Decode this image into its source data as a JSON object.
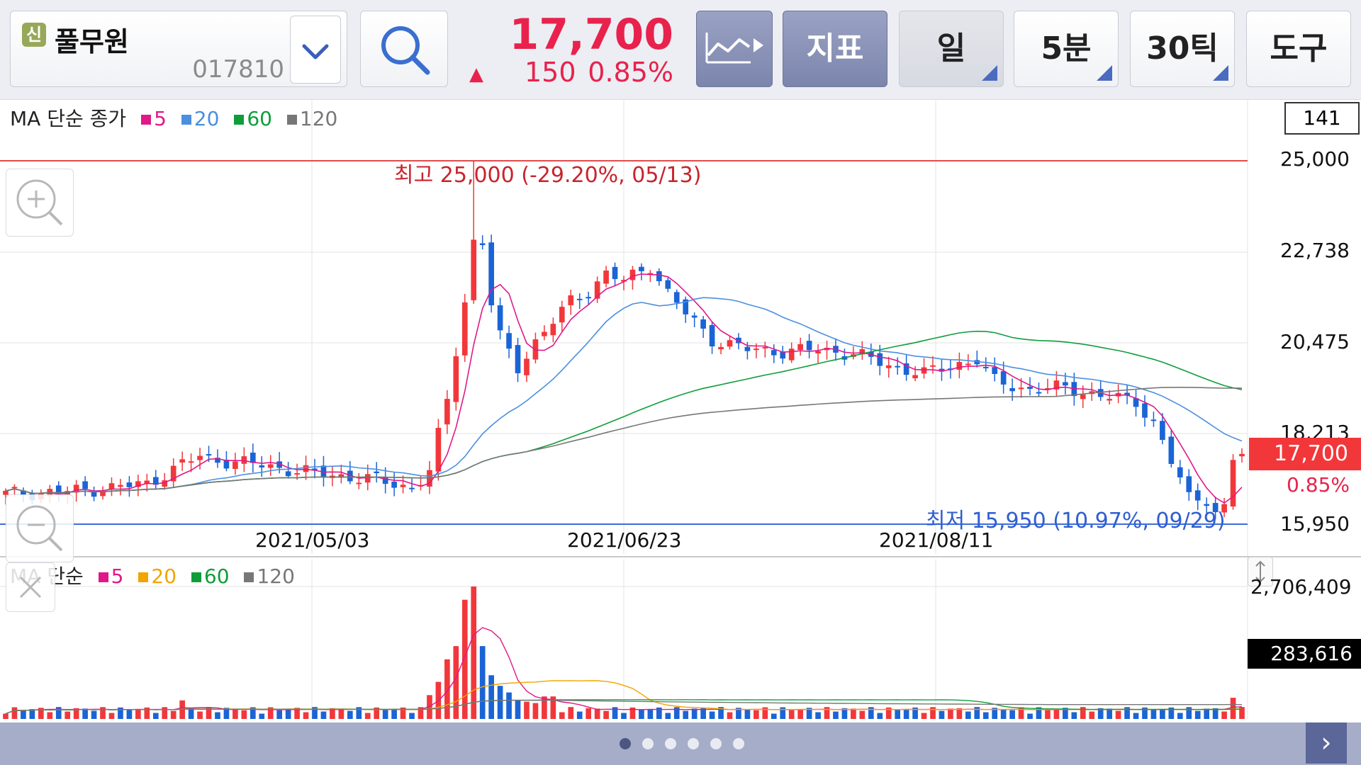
{
  "stock": {
    "badge": "신",
    "name": "풀무원",
    "code": "017810"
  },
  "quote": {
    "price": "17,700",
    "arrow": "▲",
    "change": "150",
    "change_pct": "0.85%"
  },
  "toolbar": {
    "indicator_label": "지표",
    "period_day": "일",
    "period_min": "5분",
    "period_tick": "30틱",
    "tools": "도구"
  },
  "price_chart": {
    "legend_title": "MA 단순 종가",
    "legend": [
      {
        "label": "5",
        "color": "#e0188a"
      },
      {
        "label": "20",
        "color": "#4b8fe0"
      },
      {
        "label": "60",
        "color": "#0f9d3a"
      },
      {
        "label": "120",
        "color": "#777777"
      }
    ],
    "count_box": "141",
    "y_labels": [
      "25,000",
      "22,738",
      "20,475",
      "18,213",
      "15,950"
    ],
    "current_price_label": "17,700",
    "current_pct_label": "0.85%",
    "high_annotation": "최고 25,000 (-29.20%, 05/13)",
    "low_annotation": "최저 15,950 (10.97%, 09/29)",
    "dates": [
      "2021/05/03",
      "2021/06/23",
      "2021/08/11"
    ],
    "colors": {
      "up": "#f2373b",
      "down": "#1a64d6",
      "high_line": "#e34b4b",
      "low_line": "#3f6dd8"
    }
  },
  "volume_chart": {
    "legend_title": "MA 단순",
    "legend": [
      {
        "label": "5",
        "color": "#e0188a"
      },
      {
        "label": "20",
        "color": "#f0a500"
      },
      {
        "label": "60",
        "color": "#0f9d3a"
      },
      {
        "label": "120",
        "color": "#777777"
      }
    ],
    "max_label": "2,706,409",
    "current_label": "283,616"
  },
  "pager": {
    "count": 6,
    "active": 0,
    "next": "›"
  }
}
